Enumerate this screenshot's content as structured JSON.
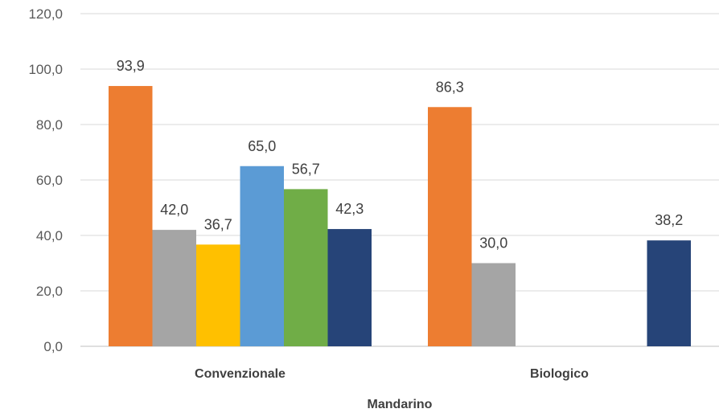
{
  "chart_data": {
    "type": "bar",
    "title": "",
    "xlabel": "Mandarino",
    "ylabel": "",
    "categories": [
      "Convenzionale",
      "Biologico"
    ],
    "ylim": [
      0,
      120
    ],
    "y_ticks": [
      "0,0",
      "20,0",
      "40,0",
      "60,0",
      "80,0",
      "100,0",
      "120,0"
    ],
    "grid": true,
    "legend": "none",
    "series": [
      {
        "color": "#ED7D31",
        "values": [
          93.9,
          86.3
        ],
        "labels": [
          "93,9",
          "86,3"
        ]
      },
      {
        "color": "#A5A5A5",
        "values": [
          42.0,
          30.0
        ],
        "labels": [
          "42,0",
          "30,0"
        ]
      },
      {
        "color": "#FFC000",
        "values": [
          36.7,
          null
        ],
        "labels": [
          "36,7",
          ""
        ]
      },
      {
        "color": "#5B9BD5",
        "values": [
          65.0,
          null
        ],
        "labels": [
          "65,0",
          ""
        ]
      },
      {
        "color": "#70AD47",
        "values": [
          56.7,
          null
        ],
        "labels": [
          "56,7",
          ""
        ]
      },
      {
        "color": "#264478",
        "values": [
          42.3,
          38.2
        ],
        "labels": [
          "42,3",
          "38,2"
        ]
      }
    ]
  }
}
